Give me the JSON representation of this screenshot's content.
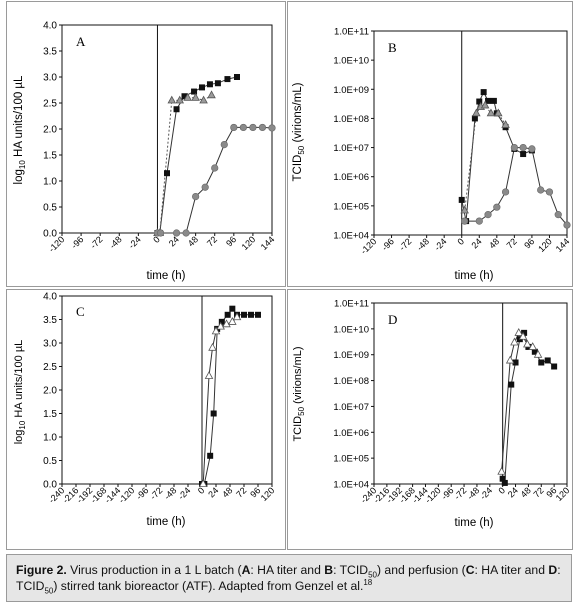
{
  "chart_data": [
    {
      "id": "A",
      "type": "scatter",
      "panel_letter": "A",
      "ylabel": "log10 HA units/100 µL",
      "xlabel": "time (h)",
      "xlim": [
        -120,
        144
      ],
      "ylim": [
        0,
        4.0
      ],
      "yscale": "linear",
      "x_ticks": [
        "-120",
        "-96",
        "-72",
        "-48",
        "-24",
        "0",
        "24",
        "48",
        "72",
        "96",
        "120",
        "144"
      ],
      "y_ticks": [
        "0.0",
        "0.5",
        "1.0",
        "1.5",
        "2.0",
        "2.5",
        "3.0",
        "3.5",
        "4.0"
      ],
      "grid": false,
      "series": [
        {
          "marker": "square",
          "color": "#111111",
          "line": "solid",
          "x": [
            0,
            3,
            12,
            24,
            34,
            46,
            56,
            66,
            76,
            88,
            100
          ],
          "y": [
            0,
            0,
            1.15,
            2.38,
            2.63,
            2.72,
            2.8,
            2.86,
            2.88,
            2.96,
            3.0
          ]
        },
        {
          "marker": "triangle",
          "color": "#9a9a9a",
          "line": "dashed",
          "x": [
            0,
            3,
            18,
            28,
            38,
            48,
            58,
            68
          ],
          "y": [
            0,
            0,
            2.55,
            2.55,
            2.6,
            2.6,
            2.55,
            2.65
          ]
        },
        {
          "marker": "circle",
          "color": "#8a8a8a",
          "line": "solid",
          "x": [
            0,
            4,
            24,
            36,
            48,
            60,
            72,
            84,
            96,
            108,
            120,
            132,
            144
          ],
          "y": [
            0,
            0,
            0,
            0,
            0.7,
            0.88,
            1.25,
            1.7,
            2.03,
            2.03,
            2.03,
            2.03,
            2.02
          ]
        }
      ]
    },
    {
      "id": "B",
      "type": "scatter",
      "panel_letter": "B",
      "ylabel": "TCID",
      "ylabel_sub": "50",
      "ylabel_tail": " (virions/mL)",
      "xlabel": "time (h)",
      "xlim": [
        -120,
        144
      ],
      "ylim": [
        10000.0,
        100000000000.0
      ],
      "yscale": "log",
      "x_ticks": [
        "-120",
        "-96",
        "-72",
        "-48",
        "-24",
        "0",
        "24",
        "48",
        "72",
        "96",
        "120",
        "144"
      ],
      "y_ticks": [
        "1.0E+04",
        "1.0E+05",
        "1.0E+06",
        "1.0E+07",
        "1.0E+08",
        "1.0E+09",
        "1.0E+10",
        "1.0E+11"
      ],
      "grid": false,
      "series": [
        {
          "marker": "square",
          "color": "#111111",
          "line": "solid",
          "x": [
            0,
            6,
            18,
            24,
            30,
            36,
            44,
            48,
            60,
            72,
            84,
            96
          ],
          "y": [
            160000,
            30000,
            100000000,
            380000000,
            800000000,
            400000000,
            400000000,
            150000000,
            50000000,
            9000000,
            6000000,
            8000000
          ]
        },
        {
          "marker": "triangle",
          "color": "#9a9a9a",
          "line": "dashed",
          "x": [
            4,
            20,
            26,
            32,
            40,
            50,
            60
          ],
          "y": [
            70000,
            150000000,
            250000000,
            280000000,
            150000000,
            150000000,
            60000000
          ]
        },
        {
          "marker": "circle",
          "color": "#8a8a8a",
          "line": "solid",
          "x": [
            4,
            24,
            36,
            48,
            60,
            72,
            84,
            96,
            108,
            120,
            132,
            144
          ],
          "y": [
            30000,
            30000,
            50000,
            90000,
            300000,
            10000000,
            10000000,
            9000000,
            350000,
            300000,
            50000,
            22000
          ]
        }
      ]
    },
    {
      "id": "C",
      "type": "scatter",
      "panel_letter": "C",
      "ylabel": "log10 HA units/100 µL",
      "xlabel": "time (h)",
      "xlim": [
        -240,
        120
      ],
      "ylim": [
        0,
        4.0
      ],
      "yscale": "linear",
      "x_ticks": [
        "-240",
        "-216",
        "-192",
        "-168",
        "-144",
        "-120",
        "-96",
        "-72",
        "-48",
        "-24",
        "0",
        "24",
        "48",
        "72",
        "96",
        "120"
      ],
      "y_ticks": [
        "0.0",
        "0.5",
        "1.0",
        "1.5",
        "2.0",
        "2.5",
        "3.0",
        "3.5",
        "4.0"
      ],
      "grid": false,
      "series": [
        {
          "marker": "square",
          "color": "#111111",
          "line": "solid",
          "x": [
            0,
            4,
            14,
            20,
            26,
            34,
            44,
            52,
            60,
            72,
            84,
            96
          ],
          "y": [
            0,
            0,
            0.6,
            1.5,
            3.3,
            3.45,
            3.6,
            3.73,
            3.6,
            3.6,
            3.6,
            3.6
          ]
        },
        {
          "marker": "triangle",
          "color": "#ffffff",
          "line": "solid",
          "x": [
            2,
            12,
            18,
            24,
            32,
            42,
            52,
            60
          ],
          "y": [
            0,
            2.3,
            2.9,
            3.25,
            3.35,
            3.4,
            3.45,
            3.55
          ]
        }
      ]
    },
    {
      "id": "D",
      "type": "scatter",
      "panel_letter": "D",
      "ylabel": "TCID",
      "ylabel_sub": "50",
      "ylabel_tail": " (virions/mL)",
      "xlabel": "time (h)",
      "xlim": [
        -240,
        120
      ],
      "ylim": [
        10000.0,
        100000000000.0
      ],
      "yscale": "log",
      "x_ticks": [
        "-240",
        "-216",
        "-192",
        "-168",
        "-144",
        "-120",
        "-96",
        "-72",
        "-48",
        "-24",
        "0",
        "24",
        "48",
        "72",
        "96",
        "120"
      ],
      "y_ticks": [
        "1.0E+04",
        "1.0E+05",
        "1.0E+06",
        "1.0E+07",
        "1.0E+08",
        "1.0E+09",
        "1.0E+10",
        "1.0E+11"
      ],
      "grid": false,
      "series": [
        {
          "marker": "square",
          "color": "#111111",
          "line": "solid",
          "x": [
            0,
            4,
            16,
            24,
            32,
            40,
            48,
            60,
            72,
            84,
            96
          ],
          "y": [
            16000,
            11000,
            70000000,
            500000000,
            4000000000,
            7000000000,
            2000000000,
            1300000000,
            500000000,
            600000000,
            350000000
          ]
        },
        {
          "marker": "triangle",
          "color": "#ffffff",
          "line": "solid",
          "x": [
            -2,
            14,
            22,
            30,
            38,
            46,
            56,
            66
          ],
          "y": [
            30000,
            600000000,
            3000000000,
            7000000000,
            5000000000,
            2500000000,
            2000000000,
            1000000000
          ]
        }
      ]
    }
  ],
  "caption": {
    "label": "Figure 2.",
    "text_1": " Virus production in a 1 L batch (",
    "a": "A",
    "a_desc": ": HA titer and ",
    "b": "B",
    "b_desc": ": TCID",
    "b_sub": "50",
    "text_2": ") and perfusion (",
    "c": "C",
    "c_desc": ": HA titer and ",
    "d": "D",
    "d_desc": ":",
    "text_3": "TCID",
    "text_3_sub": "50",
    "text_4": ") stirred tank bioreactor (ATF). Adapted from Genzel et al.",
    "ref": "18"
  }
}
